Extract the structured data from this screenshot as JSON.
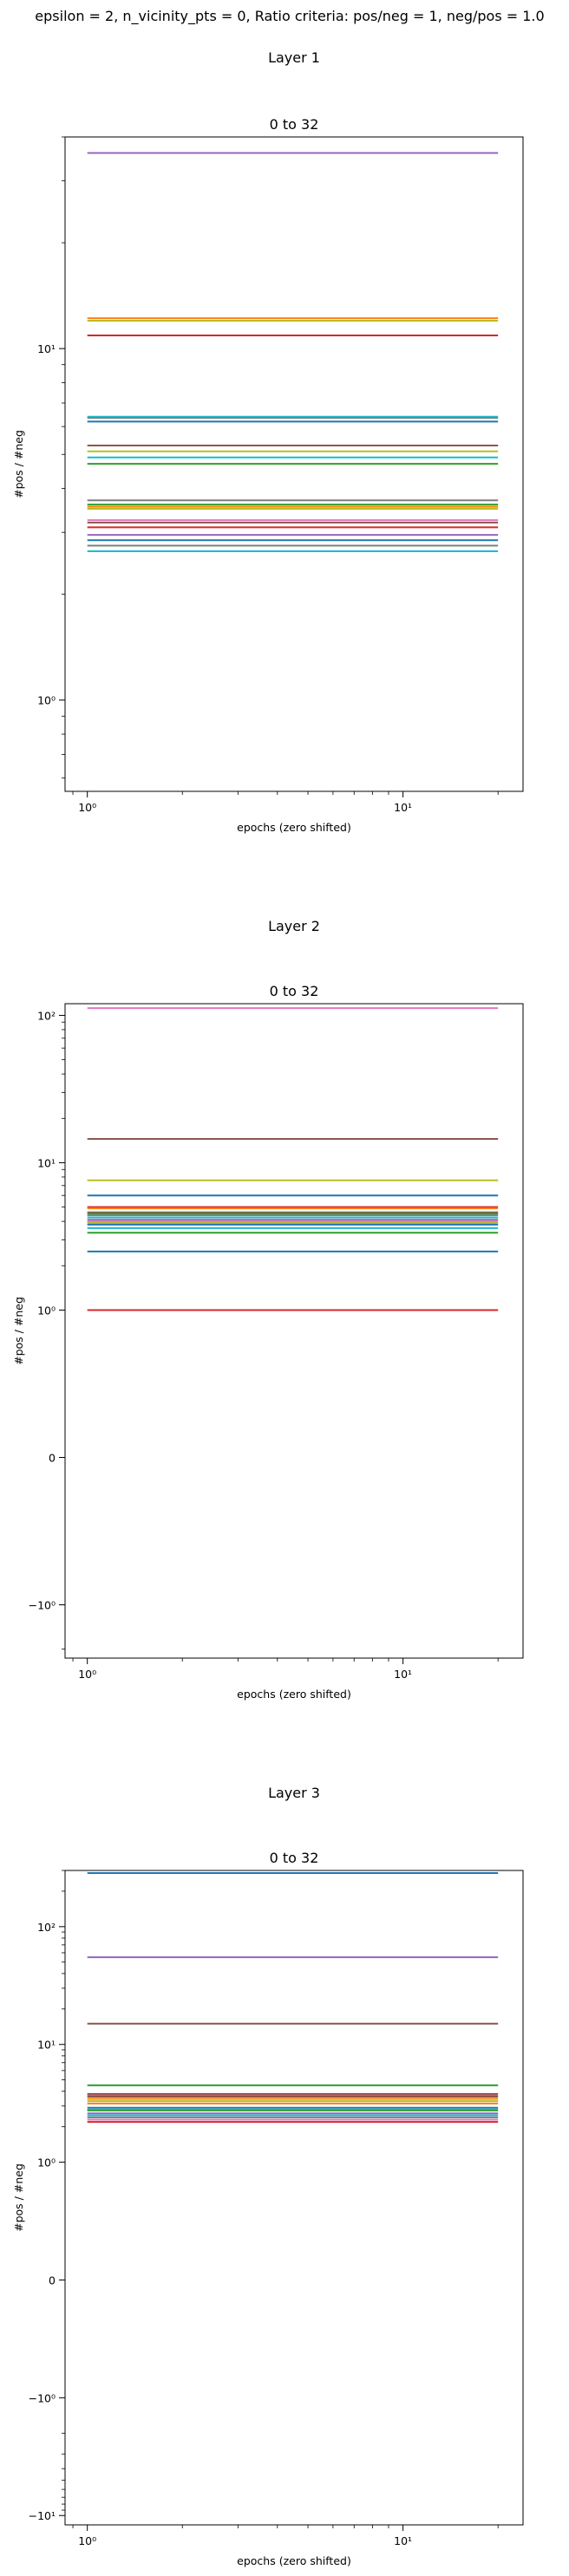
{
  "suptitle": "epsilon = 2, n_vicinity_pts = 0, Ratio criteria: pos/neg = 1, neg/pos = 1.0",
  "colors": [
    "#1f77b4",
    "#ff7f0e",
    "#2ca02c",
    "#d62728",
    "#9467bd",
    "#8c564b",
    "#e377c2",
    "#7f7f7f",
    "#bcbd22",
    "#17becf"
  ],
  "chart_data": [
    {
      "type": "line",
      "layer_title": "Layer 1",
      "title": "0 to 32",
      "xlabel": "epochs (zero shifted)",
      "ylabel": "#pos / #neg",
      "xscale": "log",
      "yscale": "log",
      "xlim": [
        0.85,
        24
      ],
      "ylim": [
        0.55,
        40
      ],
      "x_range": [
        1,
        20
      ],
      "xticks": [
        {
          "value": 1,
          "label": "10⁰"
        },
        {
          "value": 10,
          "label": "10¹"
        }
      ],
      "yticks": [
        {
          "value": 1,
          "label": "10⁰"
        },
        {
          "value": 10,
          "label": "10¹"
        }
      ],
      "series": [
        {
          "color": "#9467bd",
          "y": 36
        },
        {
          "color": "#ff7f0e",
          "y": 12.2
        },
        {
          "color": "#bcbd22",
          "y": 12.0
        },
        {
          "color": "#d62728",
          "y": 10.9
        },
        {
          "color": "#17becf",
          "y": 6.4
        },
        {
          "color": "#7f7f7f",
          "y": 6.35
        },
        {
          "color": "#1f77b4",
          "y": 6.2
        },
        {
          "color": "#8c564b",
          "y": 5.3
        },
        {
          "color": "#bcbd22",
          "y": 5.1
        },
        {
          "color": "#17becf",
          "y": 4.9
        },
        {
          "color": "#2ca02c",
          "y": 4.7
        },
        {
          "color": "#7f7f7f",
          "y": 3.7
        },
        {
          "color": "#2ca02c",
          "y": 3.6
        },
        {
          "color": "#ff7f0e",
          "y": 3.55
        },
        {
          "color": "#bcbd22",
          "y": 3.5
        },
        {
          "color": "#e377c2",
          "y": 3.25
        },
        {
          "color": "#8c564b",
          "y": 3.2
        },
        {
          "color": "#d62728",
          "y": 3.1
        },
        {
          "color": "#9467bd",
          "y": 2.95
        },
        {
          "color": "#1f77b4",
          "y": 2.85
        },
        {
          "color": "#7f7f7f",
          "y": 2.75
        },
        {
          "color": "#17becf",
          "y": 2.65
        }
      ]
    },
    {
      "type": "line",
      "layer_title": "Layer 2",
      "title": "0 to 32",
      "xlabel": "epochs (zero shifted)",
      "ylabel": "#pos / #neg",
      "xscale": "log",
      "yscale": "symlog",
      "linthresh": 1,
      "xlim": [
        0.85,
        24
      ],
      "ylim": [
        -2.3,
        120
      ],
      "x_range": [
        1,
        20
      ],
      "xticks": [
        {
          "value": 1,
          "label": "10⁰"
        },
        {
          "value": 10,
          "label": "10¹"
        }
      ],
      "yticks": [
        {
          "value": 100,
          "label": "10²"
        },
        {
          "value": 10,
          "label": "10¹"
        },
        {
          "value": 1,
          "label": "10⁰"
        },
        {
          "value": 0,
          "label": "0"
        },
        {
          "value": -1,
          "label": "−10⁰"
        }
      ],
      "series": [
        {
          "color": "#e377c2",
          "y": 112
        },
        {
          "color": "#8c564b",
          "y": 14.5
        },
        {
          "color": "#bcbd22",
          "y": 7.6
        },
        {
          "color": "#1f77b4",
          "y": 6.0
        },
        {
          "color": "#d62728",
          "y": 5.0
        },
        {
          "color": "#ff7f0e",
          "y": 4.9
        },
        {
          "color": "#8c564b",
          "y": 4.6
        },
        {
          "color": "#2ca02c",
          "y": 4.5
        },
        {
          "color": "#7f7f7f",
          "y": 4.4
        },
        {
          "color": "#17becf",
          "y": 4.25
        },
        {
          "color": "#9467bd",
          "y": 4.1
        },
        {
          "color": "#e377c2",
          "y": 4.0
        },
        {
          "color": "#bcbd22",
          "y": 3.9
        },
        {
          "color": "#1f77b4",
          "y": 3.8
        },
        {
          "color": "#17becf",
          "y": 3.6
        },
        {
          "color": "#2ca02c",
          "y": 3.35
        },
        {
          "color": "#1f77b4",
          "y": 2.5
        },
        {
          "color": "#d62728",
          "y": 1.0
        }
      ]
    },
    {
      "type": "line",
      "layer_title": "Layer 3",
      "title": "0 to 32",
      "xlabel": "epochs (zero shifted)",
      "ylabel": "#pos / #neg",
      "xscale": "log",
      "yscale": "symlog",
      "linthresh": 1,
      "xlim": [
        0.85,
        24
      ],
      "ylim": [
        -12,
        300
      ],
      "x_range": [
        1,
        20
      ],
      "xticks": [
        {
          "value": 1,
          "label": "10⁰"
        },
        {
          "value": 10,
          "label": "10¹"
        }
      ],
      "yticks": [
        {
          "value": 100,
          "label": "10²"
        },
        {
          "value": 10,
          "label": "10¹"
        },
        {
          "value": 1,
          "label": "10⁰"
        },
        {
          "value": 0,
          "label": "0"
        },
        {
          "value": -1,
          "label": "−10⁰"
        },
        {
          "value": -10,
          "label": "−10¹"
        }
      ],
      "series": [
        {
          "color": "#1f77b4",
          "y": 285
        },
        {
          "color": "#9467bd",
          "y": 55
        },
        {
          "color": "#8c564b",
          "y": 15
        },
        {
          "color": "#2ca02c",
          "y": 4.5
        },
        {
          "color": "#d62728",
          "y": 3.8
        },
        {
          "color": "#7f7f7f",
          "y": 3.7
        },
        {
          "color": "#8c564b",
          "y": 3.6
        },
        {
          "color": "#ff7f0e",
          "y": 3.45
        },
        {
          "color": "#bcbd22",
          "y": 3.3
        },
        {
          "color": "#ff7f0e",
          "y": 3.15
        },
        {
          "color": "#1f77b4",
          "y": 2.9
        },
        {
          "color": "#17becf",
          "y": 2.8
        },
        {
          "color": "#2ca02c",
          "y": 2.75
        },
        {
          "color": "#9467bd",
          "y": 2.6
        },
        {
          "color": "#17becf",
          "y": 2.5
        },
        {
          "color": "#7f7f7f",
          "y": 2.4
        },
        {
          "color": "#e377c2",
          "y": 2.3
        },
        {
          "color": "#d62728",
          "y": 2.2
        }
      ]
    }
  ]
}
